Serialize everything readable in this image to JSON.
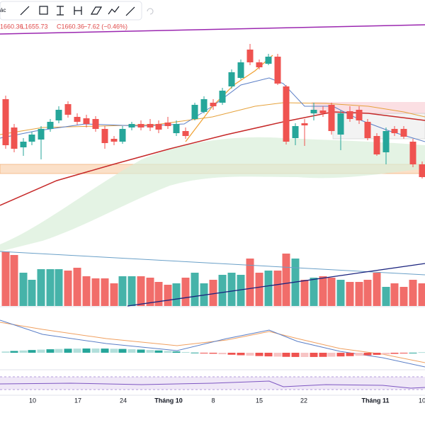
{
  "header": {
    "partial_title": "ác",
    "open": "1660.36",
    "low": "L1655.73",
    "close": "C1660.36",
    "change": "−7.62 (−0.46%)"
  },
  "time_axis": {
    "labels": [
      "10",
      "17",
      "24",
      "Tháng 10",
      "8",
      "15",
      "22",
      "Tháng 11",
      "10"
    ]
  }
}
